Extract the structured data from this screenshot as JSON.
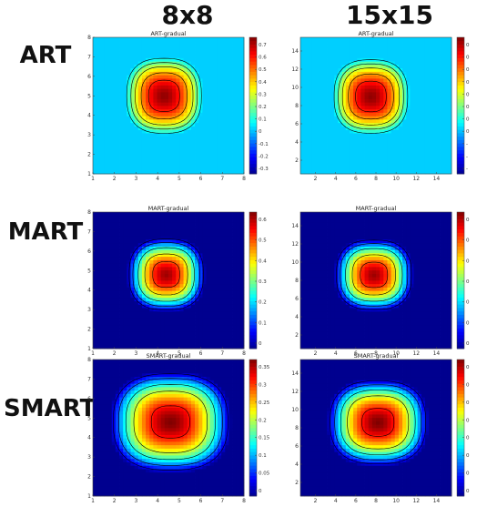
{
  "columns": [
    "8x8",
    "15x15"
  ],
  "rows": [
    "ART",
    "MART",
    "SMART"
  ],
  "colormap": [
    "#00008f",
    "#0000ff",
    "#0080ff",
    "#00ffff",
    "#80ff80",
    "#ffff00",
    "#ff8000",
    "#ff0000",
    "#800000"
  ],
  "chart_data": [
    {
      "type": "heatmap",
      "title": "ART-gradual",
      "grid_size": 8,
      "xlim": [
        1,
        8
      ],
      "ylim": [
        1,
        8
      ],
      "xticks": [
        1,
        2,
        3,
        4,
        5,
        6,
        7,
        8
      ],
      "yticks": [
        1,
        2,
        3,
        4,
        5,
        6,
        7,
        8
      ],
      "colorbar": {
        "min": -0.38,
        "max": 0.78,
        "ticks": [
          "0.7",
          "0.6",
          "0.5",
          "0.4",
          "0.3",
          "0.2",
          "0.1",
          "0",
          "-0.1",
          "-0.2",
          "-0.3"
        ]
      },
      "peak": [
        4.3,
        5.0
      ],
      "peak_value": 0.76,
      "spread": [
        1.8,
        2.0
      ],
      "background": 0,
      "contour_levels": [
        0.05,
        0.18,
        0.3,
        0.45,
        0.6
      ]
    },
    {
      "type": "heatmap",
      "title": "ART-gradual",
      "grid_size": 15,
      "xlim": [
        0.5,
        15.5
      ],
      "ylim": [
        0.5,
        15.5
      ],
      "xticks": [
        2,
        4,
        6,
        8,
        10,
        12,
        14
      ],
      "yticks": [
        2,
        4,
        6,
        8,
        10,
        12,
        14
      ],
      "colorbar": {
        "min": -0.38,
        "max": 0.78,
        "ticks": [
          "0",
          "0",
          "0",
          "0",
          "0",
          "0",
          "0",
          "0",
          "-",
          "-",
          "-"
        ]
      },
      "peak": [
        7.5,
        9.0
      ],
      "peak_value": 0.76,
      "spread": [
        3.8,
        4.2
      ],
      "background": 0,
      "contour_levels": [
        0.05,
        0.18,
        0.3,
        0.45,
        0.6
      ]
    },
    {
      "type": "heatmap",
      "title": "MART-gradual",
      "grid_size": 8,
      "xlim": [
        1,
        8
      ],
      "ylim": [
        1,
        8
      ],
      "xticks": [
        1,
        2,
        3,
        4,
        5,
        6,
        7,
        8
      ],
      "yticks": [
        1,
        2,
        3,
        4,
        5,
        6,
        7,
        8
      ],
      "colorbar": {
        "min": 0,
        "max": 0.68,
        "ticks": [
          "0.6",
          "0.5",
          "0.4",
          "0.3",
          "0.2",
          "0.1",
          "0"
        ]
      },
      "peak": [
        4.4,
        4.8
      ],
      "peak_value": 0.66,
      "spread": [
        1.8,
        1.9
      ],
      "background": 0.0,
      "contour_levels": [
        0.05,
        0.15,
        0.28,
        0.42,
        0.55
      ]
    },
    {
      "type": "heatmap",
      "title": "MART-gradual",
      "grid_size": 15,
      "xlim": [
        0.5,
        15.5
      ],
      "ylim": [
        0.5,
        15.5
      ],
      "xticks": [
        2,
        4,
        6,
        8,
        10,
        12,
        14
      ],
      "yticks": [
        2,
        4,
        6,
        8,
        10,
        12,
        14
      ],
      "colorbar": {
        "min": 0,
        "max": 0.68,
        "ticks": [
          "0",
          "0",
          "0",
          "0",
          "0",
          "0",
          "0"
        ]
      },
      "peak": [
        7.8,
        8.6
      ],
      "peak_value": 0.66,
      "spread": [
        3.9,
        4.0
      ],
      "background": 0.0,
      "contour_levels": [
        0.05,
        0.15,
        0.28,
        0.42,
        0.55
      ]
    },
    {
      "type": "heatmap",
      "title": "SMART-gradual",
      "grid_size": 8,
      "xlim": [
        1,
        8
      ],
      "ylim": [
        1,
        8
      ],
      "xticks": [
        1,
        2,
        3,
        4,
        5,
        6,
        7,
        8
      ],
      "yticks": [
        1,
        2,
        3,
        4,
        5,
        6,
        7,
        8
      ],
      "colorbar": {
        "min": 0,
        "max": 0.35,
        "ticks": [
          "0.35",
          "0.3",
          "0.25",
          "0.2",
          "0.15",
          "0.1",
          "0.05",
          "0"
        ]
      },
      "peak": [
        4.6,
        4.8
      ],
      "peak_value": 0.35,
      "spread": [
        2.8,
        2.6
      ],
      "background": 0.0,
      "contour_levels": [
        0.03,
        0.08,
        0.14,
        0.2,
        0.3
      ]
    },
    {
      "type": "heatmap",
      "title": "SMART-gradual",
      "grid_size": 15,
      "xlim": [
        0.5,
        15.5
      ],
      "ylim": [
        0.5,
        15.5
      ],
      "xticks": [
        2,
        4,
        6,
        8,
        10,
        12,
        14
      ],
      "yticks": [
        2,
        4,
        6,
        8,
        10,
        12,
        14
      ],
      "colorbar": {
        "min": 0,
        "max": 0.35,
        "ticks": [
          "0",
          "0",
          "0",
          "0",
          "0",
          "0",
          "0",
          "0"
        ]
      },
      "peak": [
        8.2,
        8.6
      ],
      "peak_value": 0.35,
      "spread": [
        5.0,
        4.8
      ],
      "background": 0.0,
      "contour_levels": [
        0.03,
        0.08,
        0.14,
        0.2,
        0.3
      ]
    }
  ]
}
